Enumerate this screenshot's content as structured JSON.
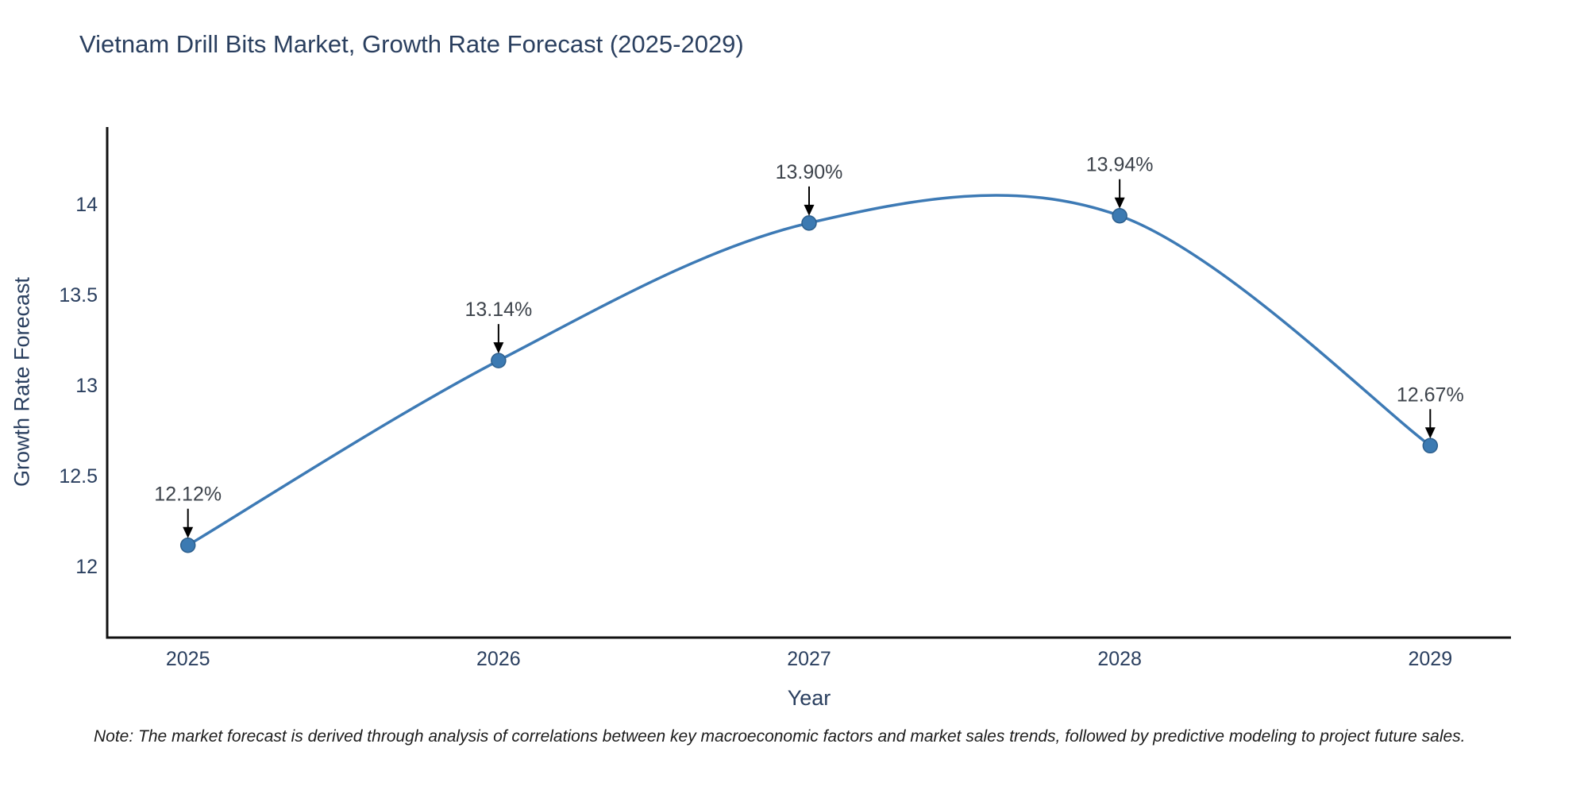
{
  "chart": {
    "note": "Note: The market forecast is derived through analysis of correlations between key macroeconomic factors and market sales trends, followed by predictive modeling to project future sales.",
    "colors": {
      "line": "#3d7ab5",
      "marker_fill": "#3c7ab2",
      "marker_edge": "#2d5f8d",
      "axis": "#111111",
      "tick_text": "#2a3f5f",
      "annotation_text": "#3d434b",
      "arrow": "#000000",
      "background": "#ffffff"
    }
  },
  "chart_data": {
    "type": "line",
    "title": "Vietnam Drill Bits Market, Growth Rate Forecast (2025-2029)",
    "xlabel": "Year",
    "ylabel": "Growth Rate Forecast",
    "x": [
      2025,
      2026,
      2027,
      2028,
      2029
    ],
    "values": [
      12.12,
      13.14,
      13.9,
      13.94,
      12.67
    ],
    "point_labels": [
      "12.12%",
      "13.14%",
      "13.90%",
      "13.94%",
      "12.67%"
    ],
    "xticks": [
      2025,
      2026,
      2027,
      2028,
      2029
    ],
    "xtick_labels": [
      "2025",
      "2026",
      "2027",
      "2028",
      "2029"
    ],
    "yticks": [
      12,
      12.5,
      13,
      13.5,
      14
    ],
    "ytick_labels": [
      "12",
      "12.5",
      "13",
      "13.5",
      "14"
    ],
    "xlim": [
      2024.74,
      2029.26
    ],
    "ylim": [
      11.61,
      14.43
    ],
    "grid": false,
    "legend": "none",
    "line_shape": "spline",
    "annotations": "arrow-down-to-point"
  }
}
